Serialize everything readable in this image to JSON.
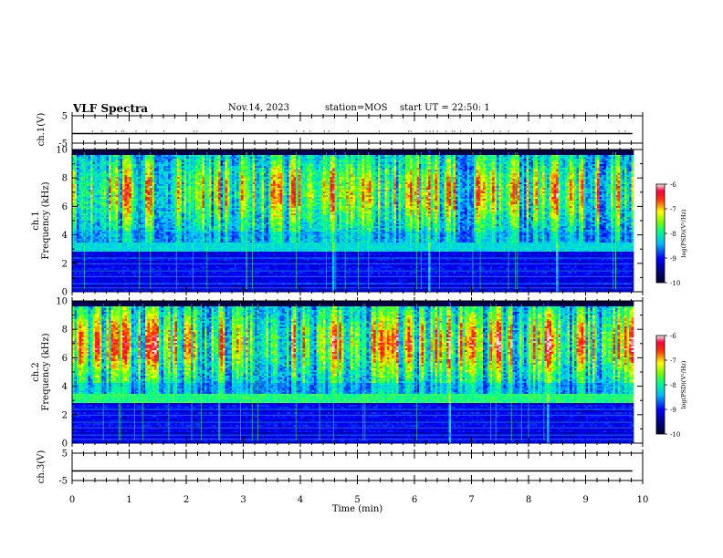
{
  "header": {
    "title": "VLF Spectra",
    "date": "Nov.14, 2023",
    "station": "station=MOS",
    "start": "start UT =  22:50: 1"
  },
  "chart_data": [
    {
      "type": "line",
      "name": "ch1-voltage",
      "ylabel": "ch.1(V)",
      "ylim": [
        -5,
        5
      ],
      "yticks": [
        5,
        -5
      ],
      "xlim": [
        0,
        10
      ],
      "series": [
        {
          "x": [
            0,
            9.82
          ],
          "y": [
            -1.5,
            -1.5
          ]
        }
      ],
      "grid": false
    },
    {
      "type": "heatmap",
      "name": "ch1-spectrogram",
      "ylabel": "ch.1\nFrequency (kHz)",
      "ylim": [
        0,
        10
      ],
      "yticks": [
        0,
        2,
        4,
        6,
        8,
        10
      ],
      "xlim": [
        0,
        10
      ],
      "data_xmax": 9.82,
      "colorbar": {
        "label": "log(PSD)(V²/Hz)",
        "ticks": [
          -6,
          -7,
          -8,
          -9,
          -10
        ],
        "range": [
          -10,
          -6
        ],
        "colors": [
          "#000070",
          "#0000ff",
          "#00c8ff",
          "#00ff00",
          "#ffff00",
          "#ff0000",
          "#ffffff"
        ]
      }
    },
    {
      "type": "heatmap",
      "name": "ch2-spectrogram",
      "ylabel": "ch.2\nFrequency (kHz)",
      "ylim": [
        0,
        10
      ],
      "yticks": [
        0,
        2,
        4,
        6,
        8,
        10
      ],
      "xlim": [
        0,
        10
      ],
      "data_xmax": 9.82,
      "colorbar": {
        "label": "log(PSD)(V²/Hz)",
        "ticks": [
          -6,
          -7,
          -8,
          -9,
          -10
        ],
        "range": [
          -10,
          -6
        ],
        "colors": [
          "#000070",
          "#0000ff",
          "#00c8ff",
          "#00ff00",
          "#ffff00",
          "#ff0000",
          "#ffffff"
        ]
      }
    },
    {
      "type": "line",
      "name": "ch3-voltage",
      "ylabel": "ch.3(V)",
      "ylim": [
        -5,
        5
      ],
      "yticks": [
        5,
        -5
      ],
      "xlim": [
        0,
        10
      ],
      "xlabel": "Time (min)",
      "xticks": [
        0,
        1,
        2,
        3,
        4,
        5,
        6,
        7,
        8,
        9,
        10
      ],
      "series": [
        {
          "x": [
            0,
            9.82
          ],
          "y": [
            -1.5,
            -1.5
          ]
        }
      ],
      "grid": false
    }
  ]
}
